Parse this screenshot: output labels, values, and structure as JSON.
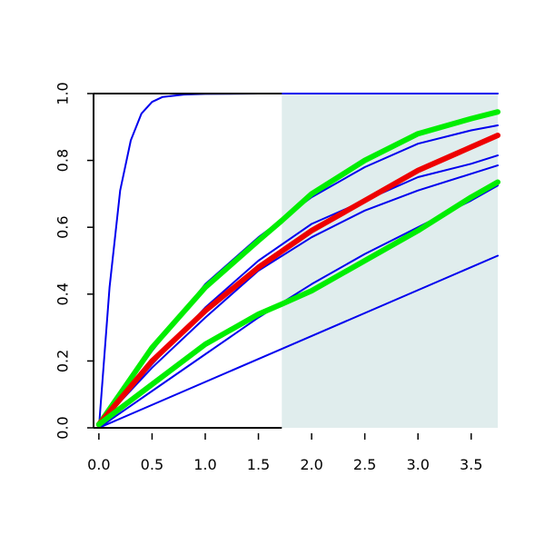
{
  "chart_data": {
    "type": "line",
    "title": "",
    "xlabel": "",
    "ylabel": "",
    "xlim": [
      -0.05,
      3.75
    ],
    "ylim": [
      0,
      1
    ],
    "grid": false,
    "legend": "none",
    "x_ticks": [
      0,
      0.5,
      1,
      1.5,
      2,
      2.5,
      3,
      3.5
    ],
    "x_tick_labels": [
      "0.0",
      "0.5",
      "1.0",
      "1.5",
      "2.0",
      "2.5",
      "3.0",
      "3.5"
    ],
    "y_ticks": [
      0,
      0.2,
      0.4,
      0.6,
      0.8,
      1
    ],
    "y_tick_labels": [
      "0.0",
      "0.2",
      "0.4",
      "0.6",
      "0.8",
      "1.0"
    ],
    "shaded_region": {
      "x_start": 1.72,
      "x_end": 3.75,
      "color": "#e0eded"
    },
    "series": [
      {
        "color": "#0000ee",
        "stroke": "thin",
        "x": [
          0,
          0.1,
          0.2,
          0.3,
          0.4,
          0.5,
          0.6,
          0.8,
          1.0,
          1.5,
          2.0,
          3.0,
          3.75
        ],
        "y": [
          0,
          0.42,
          0.71,
          0.86,
          0.94,
          0.975,
          0.99,
          0.997,
          0.999,
          1.0,
          1.0,
          1.0,
          1.0
        ]
      },
      {
        "color": "#0000ee",
        "stroke": "thin",
        "x": [
          0,
          0.5,
          1.0,
          1.5,
          2.0,
          2.5,
          3.0,
          3.5,
          3.75
        ],
        "y": [
          0.01,
          0.23,
          0.43,
          0.57,
          0.69,
          0.78,
          0.85,
          0.89,
          0.905
        ]
      },
      {
        "color": "#0000ee",
        "stroke": "thin",
        "x": [
          0,
          0.5,
          1.0,
          1.5,
          2.0,
          2.5,
          3.0,
          3.5,
          3.75
        ],
        "y": [
          0.01,
          0.19,
          0.36,
          0.5,
          0.61,
          0.68,
          0.75,
          0.79,
          0.815
        ]
      },
      {
        "color": "#0000ee",
        "stroke": "thin",
        "x": [
          0,
          0.5,
          1.0,
          1.5,
          2.0,
          2.5,
          3.0,
          3.5,
          3.75
        ],
        "y": [
          0.01,
          0.18,
          0.33,
          0.47,
          0.57,
          0.65,
          0.71,
          0.76,
          0.785
        ]
      },
      {
        "color": "#0000ee",
        "stroke": "thin",
        "x": [
          0,
          0.5,
          1.0,
          1.5,
          2.0,
          2.5,
          3.0,
          3.5,
          3.75
        ],
        "y": [
          0,
          0.11,
          0.22,
          0.33,
          0.43,
          0.52,
          0.6,
          0.68,
          0.725
        ]
      },
      {
        "color": "#0000ee",
        "stroke": "thin",
        "x": [
          0,
          3.75
        ],
        "y": [
          0,
          0.515
        ]
      },
      {
        "color": "#00ee00",
        "stroke": "thick",
        "x": [
          0,
          0.5,
          1.0,
          1.5,
          1.72,
          2.0,
          2.5,
          3.0,
          3.5,
          3.75
        ],
        "y": [
          0.01,
          0.24,
          0.42,
          0.56,
          0.62,
          0.7,
          0.8,
          0.88,
          0.925,
          0.945
        ]
      },
      {
        "color": "#ee0000",
        "stroke": "thick",
        "x": [
          0,
          0.5,
          1.0,
          1.5,
          2.0,
          2.5,
          3.0,
          3.5,
          3.75
        ],
        "y": [
          0.01,
          0.2,
          0.35,
          0.48,
          0.59,
          0.68,
          0.77,
          0.84,
          0.875
        ]
      },
      {
        "color": "#00ee00",
        "stroke": "thick",
        "x": [
          0,
          0.5,
          1.0,
          1.5,
          1.72,
          2.0,
          2.5,
          3.0,
          3.5,
          3.75
        ],
        "y": [
          0.01,
          0.13,
          0.25,
          0.34,
          0.37,
          0.41,
          0.5,
          0.59,
          0.69,
          0.735
        ]
      }
    ]
  }
}
